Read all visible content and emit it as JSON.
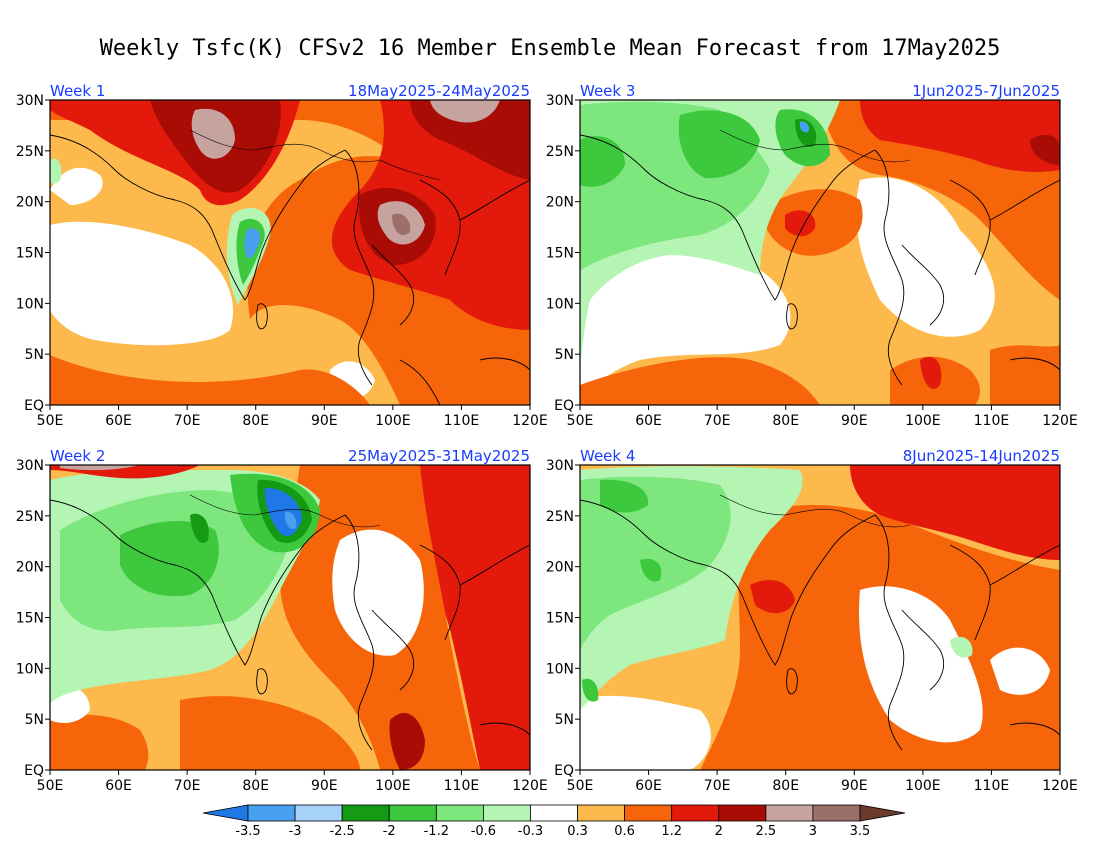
{
  "title": "Weekly Tsfc(K) CFSv2 16 Member Ensemble Mean Forecast from 17May2025",
  "axes": {
    "x_ticks": [
      "50E",
      "60E",
      "70E",
      "80E",
      "90E",
      "100E",
      "110E",
      "120E"
    ],
    "y_ticks": [
      "30N",
      "25N",
      "20N",
      "15N",
      "10N",
      "5N",
      "EQ"
    ]
  },
  "panels": [
    {
      "id": "p1",
      "week": "Week 1",
      "dates": "18May2025-24May2025",
      "dominant": "warm"
    },
    {
      "id": "p3",
      "week": "Week 3",
      "dates": "1Jun2025-7Jun2025",
      "dominant": "mixed"
    },
    {
      "id": "p2",
      "week": "Week 2",
      "dates": "25May2025-31May2025",
      "dominant": "mixed"
    },
    {
      "id": "p4",
      "week": "Week 4",
      "dates": "8Jun2025-14Jun2025",
      "dominant": "mixed"
    }
  ],
  "colorbar": {
    "labels": [
      "-3.5",
      "-3",
      "-2.5",
      "-2",
      "-1.2",
      "-0.6",
      "-0.3",
      "0.3",
      "0.6",
      "1.2",
      "2",
      "2.5",
      "3",
      "3.5"
    ],
    "colors": [
      "#1f78e6",
      "#4aa0f0",
      "#a7d3fa",
      "#159a15",
      "#3dc83d",
      "#7de67d",
      "#b4f5b4",
      "#ffffff",
      "#fdb94b",
      "#f7650a",
      "#e31a0b",
      "#a80c05",
      "#c7a39f",
      "#9a7068",
      "#6b3a2c"
    ]
  }
}
